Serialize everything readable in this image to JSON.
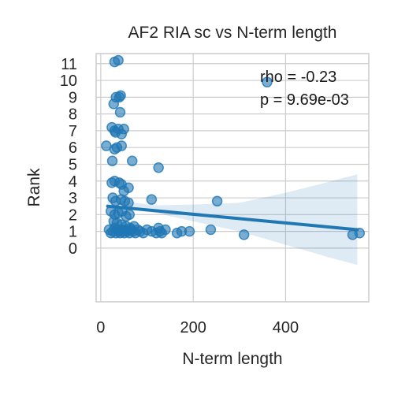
{
  "chart_data": {
    "type": "scatter",
    "title": "AF2 RIA sc vs N-term length",
    "xlabel": "N-term length",
    "ylabel": "Rank",
    "xlim": [
      -10,
      580
    ],
    "ylim": [
      -3.2,
      11.6
    ],
    "xticks": [
      0,
      200,
      400
    ],
    "yticks": [
      0,
      1,
      2,
      3,
      4,
      5,
      6,
      7,
      8,
      9,
      10,
      11
    ],
    "grid": true,
    "annotation": [
      "rho = -0.23",
      "p = 9.69e-03"
    ],
    "colors": {
      "points": "#1f77b4",
      "line": "#1f77b4",
      "band": "#1f77b4",
      "grid": "#cccccc"
    },
    "regression": {
      "x": [
        15,
        555
      ],
      "y": [
        2.5,
        1.1
      ]
    },
    "ci_band": [
      [
        15,
        2.35,
        2.9
      ],
      [
        60,
        2.3,
        2.75
      ],
      [
        120,
        2.1,
        2.55
      ],
      [
        200,
        1.6,
        2.6
      ],
      [
        300,
        1.0,
        2.7
      ],
      [
        400,
        0.2,
        3.3
      ],
      [
        500,
        -0.6,
        4.0
      ],
      [
        555,
        -1.0,
        4.4
      ]
    ],
    "points": [
      [
        30,
        11.1
      ],
      [
        38,
        11.2
      ],
      [
        33,
        9.0
      ],
      [
        40,
        9.0
      ],
      [
        43,
        9.1
      ],
      [
        28,
        8.6
      ],
      [
        42,
        8.1
      ],
      [
        24,
        7.2
      ],
      [
        30,
        7.0
      ],
      [
        38,
        7.1
      ],
      [
        50,
        7.1
      ],
      [
        45,
        6.8
      ],
      [
        32,
        6.9
      ],
      [
        12,
        6.1
      ],
      [
        30,
        5.9
      ],
      [
        35,
        6.0
      ],
      [
        45,
        6.1
      ],
      [
        25,
        5.2
      ],
      [
        68,
        5.2
      ],
      [
        125,
        4.8
      ],
      [
        24,
        3.9
      ],
      [
        30,
        4.0
      ],
      [
        40,
        3.9
      ],
      [
        45,
        3.8
      ],
      [
        60,
        3.6
      ],
      [
        50,
        3.4
      ],
      [
        26,
        3.0
      ],
      [
        32,
        2.8
      ],
      [
        44,
        2.9
      ],
      [
        52,
        2.8
      ],
      [
        60,
        2.7
      ],
      [
        110,
        2.9
      ],
      [
        252,
        2.8
      ],
      [
        22,
        2.2
      ],
      [
        30,
        2.0
      ],
      [
        38,
        2.1
      ],
      [
        46,
        2.2
      ],
      [
        55,
        1.9
      ],
      [
        62,
        2.0
      ],
      [
        28,
        1.6
      ],
      [
        35,
        1.5
      ],
      [
        45,
        1.4
      ],
      [
        55,
        1.3
      ],
      [
        64,
        1.2
      ],
      [
        72,
        1.3
      ],
      [
        18,
        1.1
      ],
      [
        22,
        0.9
      ],
      [
        26,
        1.0
      ],
      [
        30,
        1.2
      ],
      [
        33,
        0.9
      ],
      [
        36,
        1.1
      ],
      [
        39,
        1.0
      ],
      [
        42,
        0.9
      ],
      [
        45,
        1.1
      ],
      [
        48,
        1.0
      ],
      [
        51,
        0.9
      ],
      [
        54,
        1.1
      ],
      [
        58,
        1.0
      ],
      [
        62,
        0.9
      ],
      [
        66,
        1.1
      ],
      [
        70,
        1.0
      ],
      [
        75,
        0.9
      ],
      [
        80,
        1.1
      ],
      [
        85,
        1.0
      ],
      [
        92,
        0.9
      ],
      [
        100,
        1.1
      ],
      [
        110,
        1.0
      ],
      [
        120,
        0.9
      ],
      [
        125,
        1.2
      ],
      [
        128,
        1.0
      ],
      [
        132,
        0.9
      ],
      [
        140,
        1.1
      ],
      [
        165,
        0.9
      ],
      [
        175,
        1.0
      ],
      [
        192,
        1.0
      ],
      [
        238,
        1.1
      ],
      [
        310,
        0.8
      ],
      [
        360,
        9.9
      ],
      [
        545,
        0.8
      ],
      [
        560,
        0.9
      ]
    ]
  }
}
